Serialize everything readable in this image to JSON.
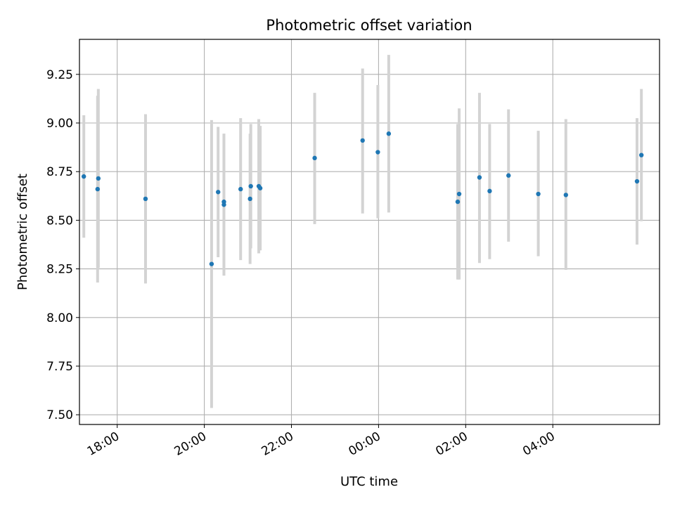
{
  "chart_data": {
    "type": "scatter",
    "title": "Photometric offset variation",
    "xlabel": "UTC time",
    "ylabel": "Photometric offset",
    "x_axis_type": "time",
    "x_origin_date": "",
    "xlim": [
      "17:08",
      "06:27"
    ],
    "ylim": [
      7.45,
      9.43
    ],
    "x_ticks": [
      "18:00",
      "20:00",
      "22:00",
      "00:00",
      "02:00",
      "04:00"
    ],
    "y_ticks": [
      7.5,
      7.75,
      8.0,
      8.25,
      8.5,
      8.75,
      9.0,
      9.25
    ],
    "y_tick_labels": [
      "7.50",
      "7.75",
      "8.00",
      "8.25",
      "8.50",
      "8.75",
      "9.00",
      "9.25"
    ],
    "grid": true,
    "colors": {
      "points": "#1f77b4",
      "error_bars": "#d3d3d3",
      "grid": "#b0b0b0"
    },
    "series": [
      {
        "name": "",
        "points": [
          {
            "x": "17:14",
            "y": 8.725,
            "ylow": 8.41,
            "yhigh": 9.04
          },
          {
            "x": "17:33",
            "y": 8.66,
            "ylow": 8.18,
            "yhigh": 9.14
          },
          {
            "x": "17:34",
            "y": 8.715,
            "ylow": 8.255,
            "yhigh": 9.175
          },
          {
            "x": "18:39",
            "y": 8.61,
            "ylow": 8.175,
            "yhigh": 9.045
          },
          {
            "x": "20:10",
            "y": 8.275,
            "ylow": 7.535,
            "yhigh": 9.015
          },
          {
            "x": "20:19",
            "y": 8.645,
            "ylow": 8.31,
            "yhigh": 8.98
          },
          {
            "x": "20:27",
            "y": 8.595,
            "ylow": 8.22,
            "yhigh": 8.945
          },
          {
            "x": "20:27",
            "y": 8.58,
            "ylow": 8.215,
            "yhigh": 8.945
          },
          {
            "x": "20:50",
            "y": 8.66,
            "ylow": 8.295,
            "yhigh": 9.025
          },
          {
            "x": "21:03",
            "y": 8.61,
            "ylow": 8.275,
            "yhigh": 8.945
          },
          {
            "x": "21:04",
            "y": 8.675,
            "ylow": 8.355,
            "yhigh": 8.995
          },
          {
            "x": "21:15",
            "y": 8.675,
            "ylow": 8.33,
            "yhigh": 9.02
          },
          {
            "x": "21:17",
            "y": 8.665,
            "ylow": 8.345,
            "yhigh": 8.985
          },
          {
            "x": "22:32",
            "y": 8.82,
            "ylow": 8.48,
            "yhigh": 9.155
          },
          {
            "x": "23:38",
            "y": 8.91,
            "ylow": 8.535,
            "yhigh": 9.28
          },
          {
            "x": "23:59",
            "y": 8.85,
            "ylow": 8.51,
            "yhigh": 9.195
          },
          {
            "x": "00:14",
            "y": 8.945,
            "ylow": 8.54,
            "yhigh": 9.35
          },
          {
            "x": "01:49",
            "y": 8.595,
            "ylow": 8.195,
            "yhigh": 8.995
          },
          {
            "x": "01:51",
            "y": 8.635,
            "ylow": 8.195,
            "yhigh": 9.075
          },
          {
            "x": "02:19",
            "y": 8.72,
            "ylow": 8.28,
            "yhigh": 9.155
          },
          {
            "x": "02:33",
            "y": 8.65,
            "ylow": 8.3,
            "yhigh": 8.995
          },
          {
            "x": "02:59",
            "y": 8.73,
            "ylow": 8.39,
            "yhigh": 9.07
          },
          {
            "x": "03:40",
            "y": 8.635,
            "ylow": 8.315,
            "yhigh": 8.96
          },
          {
            "x": "04:18",
            "y": 8.63,
            "ylow": 8.245,
            "yhigh": 9.02
          },
          {
            "x": "05:56",
            "y": 8.7,
            "ylow": 8.375,
            "yhigh": 9.025
          },
          {
            "x": "06:02",
            "y": 8.835,
            "ylow": 8.495,
            "yhigh": 9.175
          }
        ]
      }
    ]
  }
}
